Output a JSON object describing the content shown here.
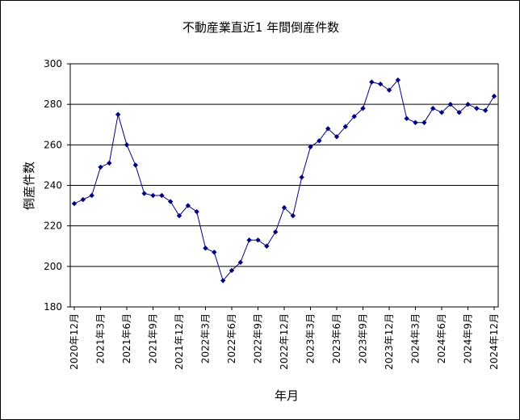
{
  "chart_data": {
    "type": "line",
    "title": "不動産業直近1 年間倒産件数",
    "xlabel": "年月",
    "ylabel": "倒産件数",
    "ylim": [
      180,
      300
    ],
    "yticks": [
      180,
      200,
      220,
      240,
      260,
      280,
      300
    ],
    "grid": "horizontal",
    "legend": "none",
    "x_tick_labels": [
      "2020年12月",
      "2021年3月",
      "2021年6月",
      "2021年9月",
      "2021年12月",
      "2022年3月",
      "2022年6月",
      "2022年9月",
      "2022年12月",
      "2023年3月",
      "2023年6月",
      "2023年9月",
      "2023年12月",
      "2024年3月",
      "2024年6月",
      "2024年9月",
      "2024年12月"
    ],
    "x": [
      "2020-12",
      "2021-01",
      "2021-02",
      "2021-03",
      "2021-04",
      "2021-05",
      "2021-06",
      "2021-07",
      "2021-08",
      "2021-09",
      "2021-10",
      "2021-11",
      "2021-12",
      "2022-01",
      "2022-02",
      "2022-03",
      "2022-04",
      "2022-05",
      "2022-06",
      "2022-07",
      "2022-08",
      "2022-09",
      "2022-10",
      "2022-11",
      "2022-12",
      "2023-01",
      "2023-02",
      "2023-03",
      "2023-04",
      "2023-05",
      "2023-06",
      "2023-07",
      "2023-08",
      "2023-09",
      "2023-10",
      "2023-11",
      "2023-12",
      "2024-01",
      "2024-02",
      "2024-03",
      "2024-04",
      "2024-05",
      "2024-06",
      "2024-07",
      "2024-08",
      "2024-09",
      "2024-10",
      "2024-11",
      "2024-12"
    ],
    "values": [
      231,
      233,
      235,
      249,
      251,
      275,
      260,
      250,
      236,
      235,
      235,
      232,
      225,
      230,
      227,
      209,
      207,
      193,
      198,
      202,
      213,
      213,
      210,
      217,
      229,
      225,
      244,
      259,
      262,
      268,
      264,
      269,
      274,
      278,
      291,
      290,
      287,
      292,
      273,
      271,
      271,
      278,
      276,
      280,
      276,
      280,
      278,
      277,
      284
    ],
    "colors": {
      "line": "#000080",
      "marker": "#000080",
      "grid": "#000000"
    }
  }
}
